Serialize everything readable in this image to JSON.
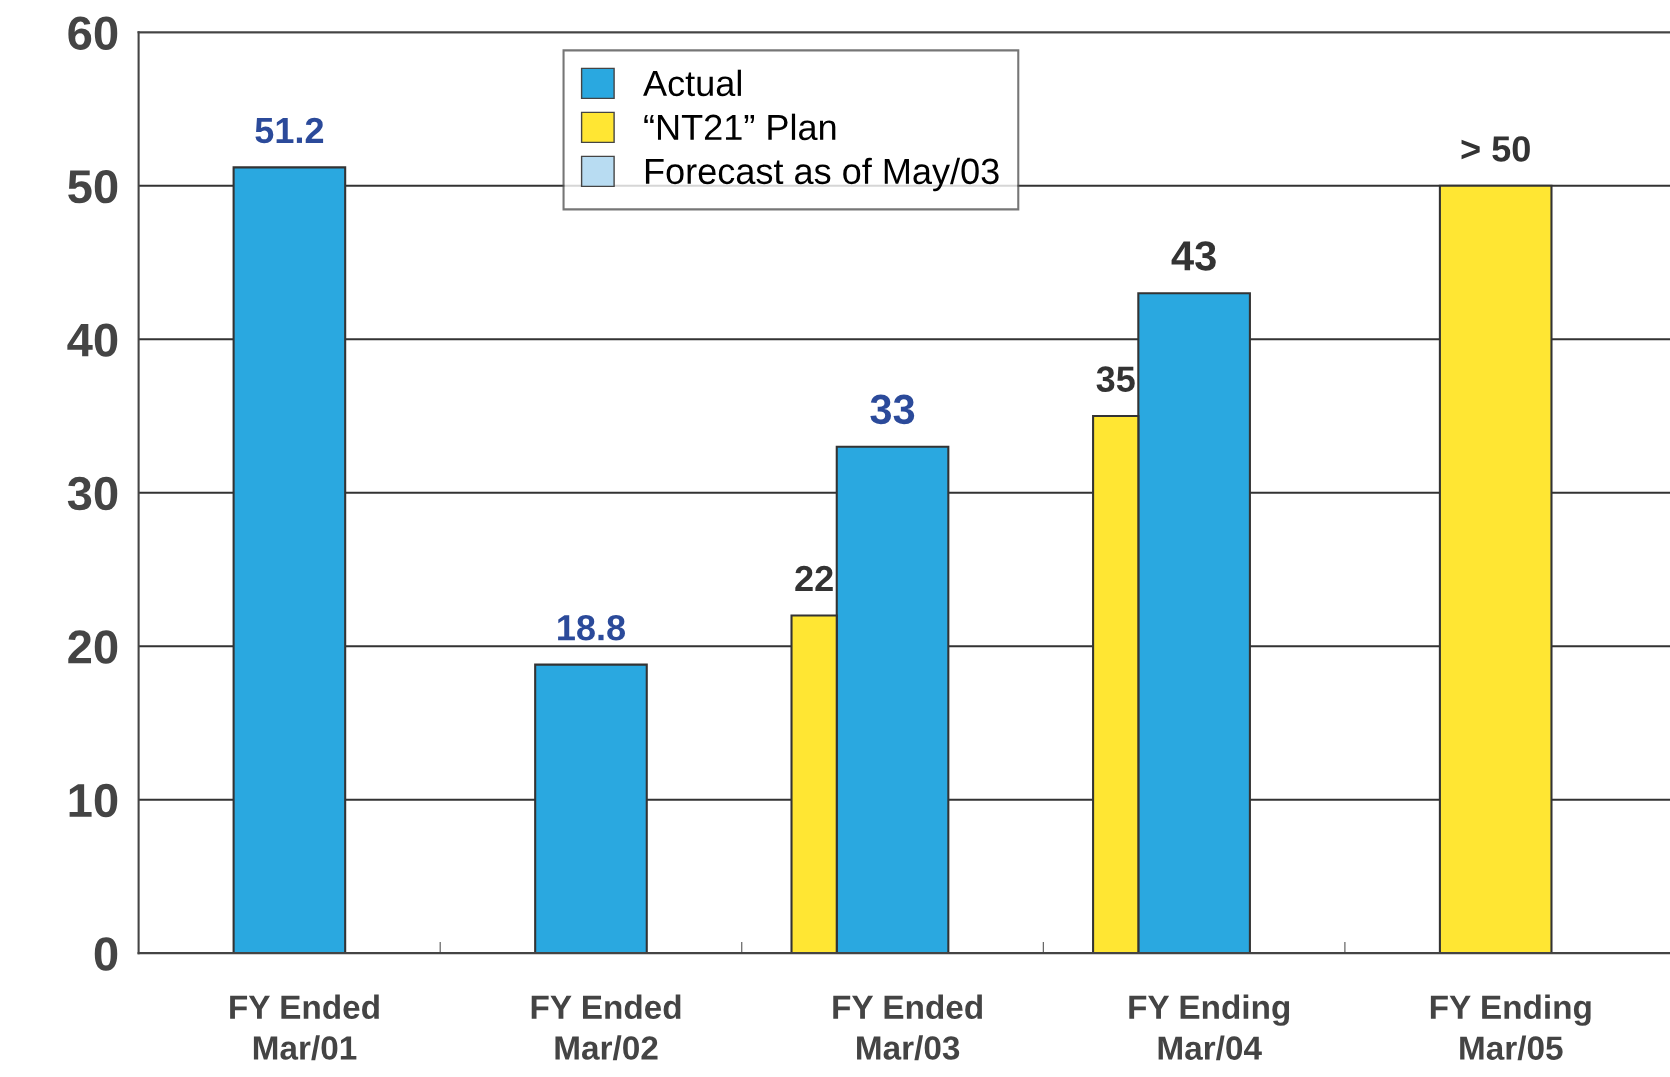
{
  "chart_data": {
    "type": "bar",
    "categories": [
      "FY Ended\nMar/01",
      "FY Ended\nMar/02",
      "FY Ended\nMar/03",
      "FY Ending\nMar/04",
      "FY Ending\nMar/05"
    ],
    "series": [
      {
        "name": "Actual",
        "color": "#2aa8e0",
        "values": [
          51.2,
          18.8,
          33,
          43,
          null
        ],
        "value_labels": [
          "51.2",
          "18.8",
          "33",
          "43",
          null
        ]
      },
      {
        "name": "“NT21” Plan",
        "color": "#ffe633",
        "values": [
          null,
          null,
          22,
          35,
          50
        ],
        "value_labels": [
          null,
          null,
          "22",
          "35",
          "> 50"
        ]
      },
      {
        "name": "Forecast as of May/03",
        "color": "#b8dcf2",
        "values": [
          null,
          null,
          null,
          null,
          null
        ]
      }
    ],
    "ylim": [
      0,
      60
    ],
    "yticks": [
      0,
      10,
      20,
      30,
      40,
      50,
      60
    ],
    "grid": "y",
    "legend": "top"
  }
}
